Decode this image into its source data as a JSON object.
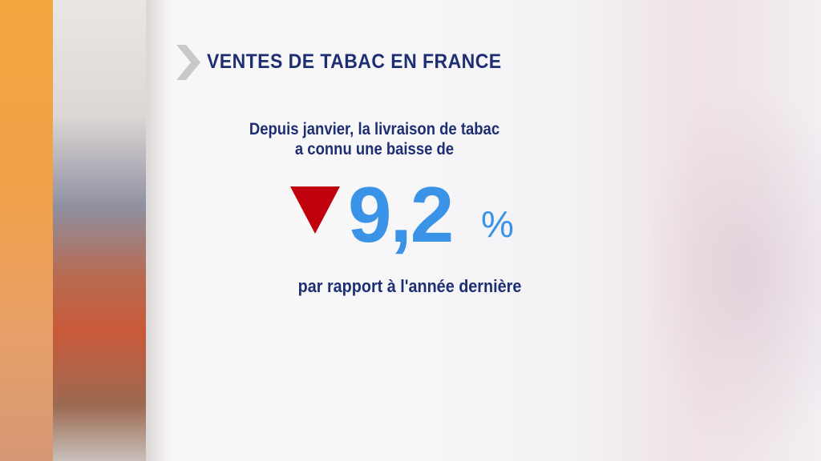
{
  "header": {
    "title": "VENTES DE TABAC EN FRANCE"
  },
  "statement": {
    "intro": [
      "Depuis janvier, la livraison de tabac",
      "a connu une baisse de"
    ],
    "value": "9,2",
    "unit": "%",
    "comparison": "par rapport à l'année dernière"
  }
}
